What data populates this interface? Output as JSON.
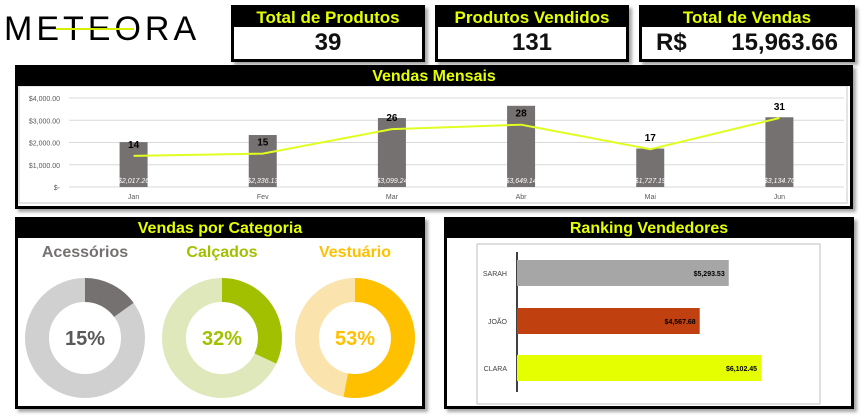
{
  "brand": {
    "logo_text": "METEORA"
  },
  "kpis": {
    "produtos": {
      "label": "Total de Produtos",
      "value": "39"
    },
    "vendidos": {
      "label": "Produtos Vendidos",
      "value": "131"
    },
    "vendas": {
      "label": "Total de Vendas",
      "currency": "R$",
      "value": "15,963.66"
    }
  },
  "monthly": {
    "title": "Vendas Mensais",
    "chart_data": {
      "type": "bar",
      "categories": [
        "Jan",
        "Fev",
        "Mar",
        "Abr",
        "Mai",
        "Jun"
      ],
      "series": [
        {
          "values": [
            2017.26,
            2336.13,
            3099.24,
            3649.14,
            1727.19,
            3134.7
          ],
          "labels": [
            "$2,017.26",
            "$2,336.13",
            "$3,099.24",
            "$3,649.14",
            "$1,727.19",
            "$3,134.70"
          ]
        },
        {
          "type": "line",
          "values": [
            14,
            15,
            26,
            28,
            17,
            31
          ]
        }
      ],
      "y_ticks": [
        "$4,000.00",
        "$3,000.00",
        "$2,000.00",
        "$1,000.00",
        "$-"
      ],
      "ylim": [
        0,
        4000
      ],
      "grid": true,
      "colors": {
        "bar": "#767171",
        "line": "#e0ff21"
      }
    }
  },
  "categories": {
    "title": "Vendas por Categoria",
    "chart_data": {
      "type": "pie",
      "items": [
        {
          "label": "Acessórios",
          "percent": 15,
          "text": "15%",
          "color": "#767171",
          "track": "#d0d0d0",
          "title_color": "#767171"
        },
        {
          "label": "Calçados",
          "percent": 32,
          "text": "32%",
          "color": "#a2c000",
          "track": "#dfe8bb",
          "title_color": "#a2c000"
        },
        {
          "label": "Vestuário",
          "percent": 53,
          "text": "53%",
          "color": "#ffc000",
          "track": "#fbe3ad",
          "title_color": "#ffc000"
        }
      ]
    }
  },
  "ranking": {
    "title": "Ranking Vendedores",
    "chart_data": {
      "type": "bar",
      "orientation": "horizontal",
      "categories": [
        "SARAH",
        "JOÃO",
        "CLARA"
      ],
      "values": [
        5293.53,
        4567.68,
        6102.45
      ],
      "labels": [
        "$5,293.53",
        "$4,567.68",
        "$6,102.45"
      ],
      "colors": [
        "#a6a6a6",
        "#c0410f",
        "#e5ff00"
      ]
    }
  }
}
